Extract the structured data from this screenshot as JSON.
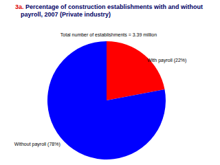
{
  "chart_data": {
    "type": "pie",
    "title": "3a. Percentage of construction establishments with and without payroll, 2007 (Private industry)",
    "subtitle": "Total number of establishments = 3.39 million",
    "categories": [
      "With payroll (22%)",
      "Without payroll (78%)"
    ],
    "values": [
      22,
      78
    ],
    "colors": [
      "#ff0000",
      "#0000ff"
    ]
  }
}
